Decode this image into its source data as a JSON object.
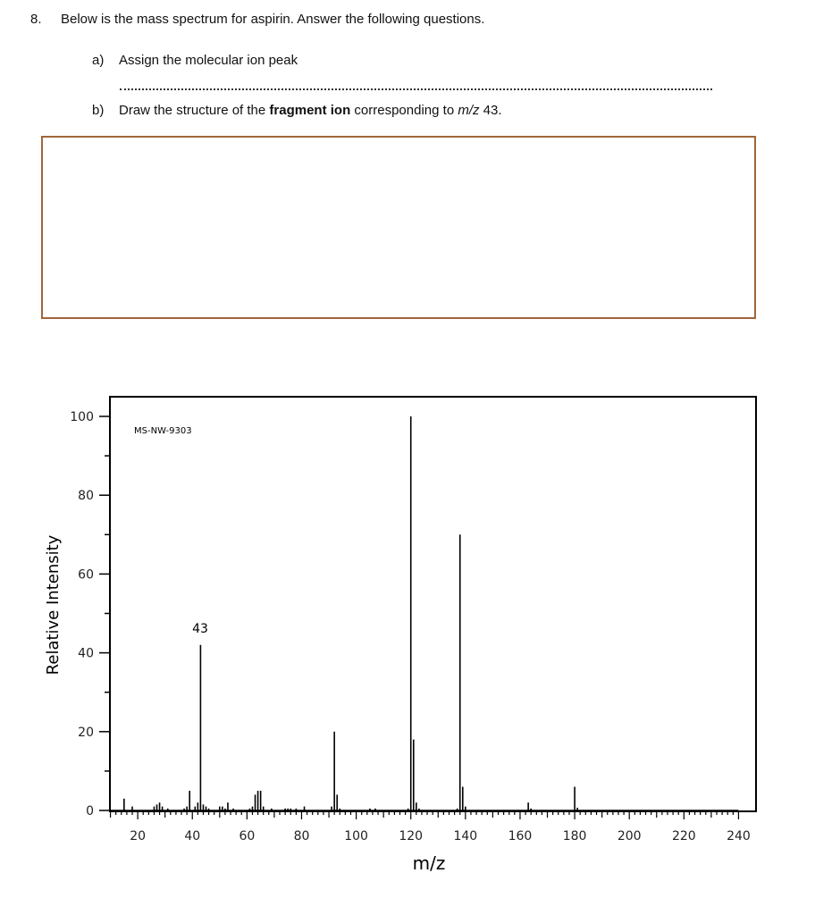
{
  "question": {
    "number": "8.",
    "prompt": "Below is the mass spectrum for aspirin. Answer the following questions.",
    "parts": [
      {
        "label": "a)",
        "text": "Assign the molecular ion peak"
      },
      {
        "label": "b)",
        "text_before": "Draw the structure of the ",
        "text_bold": "fragment ion",
        "text_mid": " corresponding to ",
        "text_italic": "m/z",
        "text_after": " 43."
      }
    ]
  },
  "colors": {
    "answer_box_border": "#a0663a",
    "plot_ink": "#000000"
  },
  "chart_data": {
    "type": "bar",
    "title": "",
    "annotation_id": "MS-NW-9303",
    "peak_label": "43",
    "xlabel": "m/z",
    "ylabel": "Relative Intensity",
    "xlim": [
      10,
      245
    ],
    "ylim": [
      0,
      100
    ],
    "xticks": [
      20,
      40,
      60,
      80,
      100,
      120,
      140,
      160,
      180,
      200,
      220,
      240
    ],
    "yticks": [
      0,
      20,
      40,
      60,
      80,
      100
    ],
    "grid": false,
    "legend": "none",
    "peaks": [
      {
        "mz": 15,
        "intensity": 3
      },
      {
        "mz": 18,
        "intensity": 1
      },
      {
        "mz": 26,
        "intensity": 1
      },
      {
        "mz": 27,
        "intensity": 1.5
      },
      {
        "mz": 28,
        "intensity": 2
      },
      {
        "mz": 29,
        "intensity": 1
      },
      {
        "mz": 31,
        "intensity": 0.5
      },
      {
        "mz": 37,
        "intensity": 0.5
      },
      {
        "mz": 38,
        "intensity": 1
      },
      {
        "mz": 39,
        "intensity": 5
      },
      {
        "mz": 41,
        "intensity": 1
      },
      {
        "mz": 42,
        "intensity": 2
      },
      {
        "mz": 43,
        "intensity": 42
      },
      {
        "mz": 44,
        "intensity": 1.5
      },
      {
        "mz": 45,
        "intensity": 1
      },
      {
        "mz": 46,
        "intensity": 0.5
      },
      {
        "mz": 50,
        "intensity": 1
      },
      {
        "mz": 51,
        "intensity": 1
      },
      {
        "mz": 52,
        "intensity": 0.5
      },
      {
        "mz": 53,
        "intensity": 2
      },
      {
        "mz": 55,
        "intensity": 0.5
      },
      {
        "mz": 61,
        "intensity": 0.5
      },
      {
        "mz": 62,
        "intensity": 1
      },
      {
        "mz": 63,
        "intensity": 4
      },
      {
        "mz": 64,
        "intensity": 5
      },
      {
        "mz": 65,
        "intensity": 5
      },
      {
        "mz": 66,
        "intensity": 1
      },
      {
        "mz": 69,
        "intensity": 0.5
      },
      {
        "mz": 74,
        "intensity": 0.5
      },
      {
        "mz": 75,
        "intensity": 0.5
      },
      {
        "mz": 76,
        "intensity": 0.5
      },
      {
        "mz": 78,
        "intensity": 0.5
      },
      {
        "mz": 81,
        "intensity": 1
      },
      {
        "mz": 91,
        "intensity": 1
      },
      {
        "mz": 92,
        "intensity": 20
      },
      {
        "mz": 93,
        "intensity": 4
      },
      {
        "mz": 94,
        "intensity": 0.5
      },
      {
        "mz": 105,
        "intensity": 0.5
      },
      {
        "mz": 107,
        "intensity": 0.5
      },
      {
        "mz": 119,
        "intensity": 0.5
      },
      {
        "mz": 120,
        "intensity": 100
      },
      {
        "mz": 121,
        "intensity": 18
      },
      {
        "mz": 122,
        "intensity": 2
      },
      {
        "mz": 123,
        "intensity": 0.5
      },
      {
        "mz": 137,
        "intensity": 0.5
      },
      {
        "mz": 138,
        "intensity": 70
      },
      {
        "mz": 139,
        "intensity": 6
      },
      {
        "mz": 140,
        "intensity": 1
      },
      {
        "mz": 163,
        "intensity": 2
      },
      {
        "mz": 164,
        "intensity": 0.5
      },
      {
        "mz": 180,
        "intensity": 6
      },
      {
        "mz": 181,
        "intensity": 0.7
      }
    ]
  }
}
